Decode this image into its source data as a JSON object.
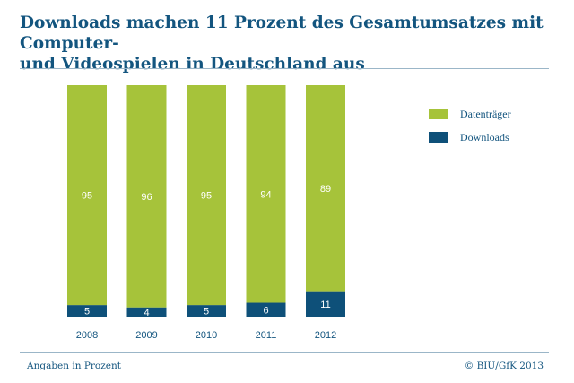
{
  "title_line1": "Downloads machen 11 Prozent des Gesamtumsatzes mit Computer-",
  "title_line2": "und Videospielen in Deutschland aus",
  "footer": {
    "note": "Angaben in Prozent",
    "source": "© BIU/GfK 2013"
  },
  "chart_data": {
    "type": "bar",
    "stacked": true,
    "categories": [
      "2008",
      "2009",
      "2010",
      "2011",
      "2012"
    ],
    "series": [
      {
        "name": "Downloads",
        "values": [
          5,
          4,
          5,
          6,
          11
        ],
        "color": "#0e5079"
      },
      {
        "name": "Datenträger",
        "values": [
          95,
          96,
          95,
          94,
          89
        ],
        "color": "#a6c33a"
      }
    ],
    "ylim": [
      0,
      100
    ],
    "grid": false,
    "legend_position": "right",
    "legend_order": [
      "Datenträger",
      "Downloads"
    ]
  }
}
